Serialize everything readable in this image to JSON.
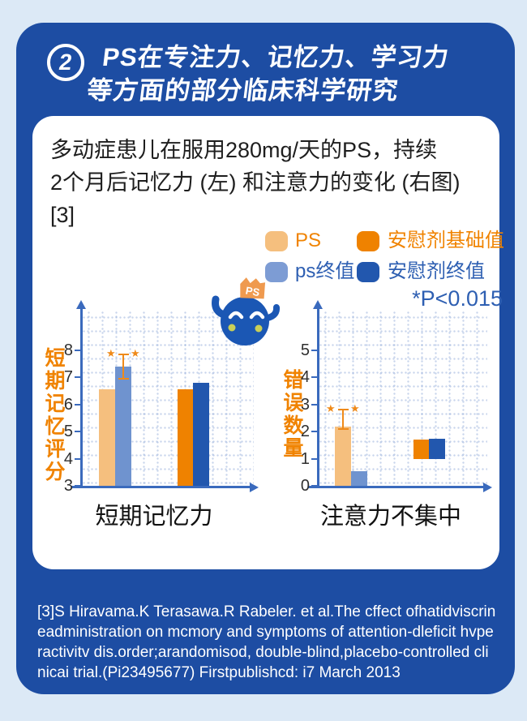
{
  "header": {
    "badge": "2",
    "title_line1": "PS在专注力、记忆力、学习力",
    "title_line2": "等方面的部分临床科学研究"
  },
  "card": {
    "description": "多动症患儿在服用280mg/天的PS，持续\n2个月后记忆力 (左) 和注意力的变化 (右图)\n[3]"
  },
  "legend": {
    "items": [
      {
        "label": "PS",
        "color": "#f5bf7e",
        "text_color": "#f08300"
      },
      {
        "label": "安慰剂基础值",
        "color": "#ef8200",
        "text_color": "#f08300"
      },
      {
        "label": "ps终值",
        "color": "#7d9cd4",
        "text_color": "#2e5fb2"
      },
      {
        "label": "安慰剂终值",
        "color": "#2257ae",
        "text_color": "#2e5fb2"
      }
    ],
    "p_value": "*P<0.015"
  },
  "mascot": {
    "crown_label": "PS"
  },
  "chart_data": [
    {
      "type": "bar",
      "title": "短期记忆力",
      "ylabel": "短期记忆评分",
      "ylim": [
        3,
        8
      ],
      "yticks": [
        3,
        4,
        5,
        6,
        7,
        8
      ],
      "grid": "dotted",
      "legend_position": "above",
      "series": [
        {
          "name": "PS",
          "value": 6.55,
          "color": "#f5bf7e"
        },
        {
          "name": "ps终值",
          "value": 7.4,
          "color": "#6f93cf",
          "error_bar": [
            6.95,
            7.85
          ],
          "significance_stars": 2
        },
        {
          "name": "安慰剂基础值",
          "value": 6.55,
          "color": "#ef8200"
        },
        {
          "name": "安慰剂终值",
          "value": 6.8,
          "color": "#2257ae"
        }
      ]
    },
    {
      "type": "bar",
      "title": "注意力不集中",
      "ylabel": "错误数量",
      "ylim": [
        0,
        5
      ],
      "yticks": [
        0,
        1,
        2,
        3,
        4,
        5
      ],
      "grid": "dotted",
      "series": [
        {
          "name": "PS",
          "value": 2.2,
          "color": "#f5bf7e",
          "error_bar": [
            2.1,
            2.82
          ],
          "significance_stars": 2
        },
        {
          "name": "ps终值",
          "value": 0.55,
          "color": "#6f93cf"
        },
        {
          "name": "安慰剂基础值",
          "value": 1.7,
          "bottom": 1.0,
          "color": "#ef8200"
        },
        {
          "name": "安慰剂终值",
          "value": 1.75,
          "bottom": 1.0,
          "color": "#2257ae"
        }
      ]
    }
  ],
  "footnote": "[3]S Hiravama.K Terasawa.R Rabeler. et al.The cffect ofhatidviscrineadministration on mcmory and symptoms of attention-dleficit hvperactivitv dis.order;arandomisod, double-blind,placebo-controlled clinicai trial.(Pi23495677) Firstpublishcd: i7 March 2013",
  "colors": {
    "background": "#dce9f6",
    "panel": "#1d4da3",
    "card": "#ffffff",
    "axis": "#3a6abd",
    "error_bar": "#ef8a1a",
    "star": "#ef8a1a",
    "accent_orange": "#f08300",
    "accent_blue": "#2e5fb2"
  }
}
